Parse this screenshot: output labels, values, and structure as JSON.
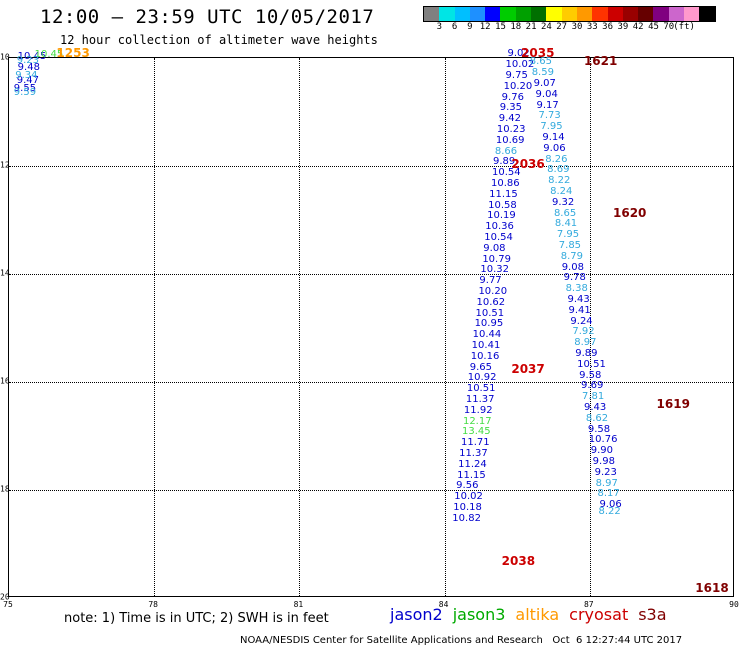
{
  "header": {
    "title": "12:00 — 23:59 UTC 10/05/2017",
    "subtitle": "12 hour collection of altimeter wave heights"
  },
  "legend": {
    "colors": [
      "#808080",
      "#00e5e5",
      "#00bfff",
      "#1e90ff",
      "#0000ff",
      "#00cc00",
      "#00a000",
      "#007000",
      "#ffff00",
      "#ffcc00",
      "#ff9900",
      "#ff3300",
      "#cc0000",
      "#990000",
      "#660000",
      "#800080",
      "#cc66cc",
      "#ff99cc",
      "#000000"
    ],
    "labels": [
      "3",
      "6",
      "9",
      "12",
      "15",
      "18",
      "21",
      "24",
      "27",
      "30",
      "33",
      "36",
      "39",
      "42",
      "45",
      "70",
      "(ft)"
    ]
  },
  "axes": {
    "x_ticks": [
      "75",
      "78",
      "81",
      "84",
      "87",
      "90"
    ],
    "y_ticks": [
      "10",
      "12",
      "14",
      "16",
      "18",
      "20"
    ],
    "x_range": [
      75,
      90
    ],
    "y_range": [
      10,
      20
    ],
    "y_axis_inverted": true
  },
  "satellites": {
    "jason2": "#0000cc",
    "jason3": "#00aa00",
    "altika": "#ff9900",
    "cryosat": "#cc0000",
    "s3a": "#800000",
    "light": "#33aadd",
    "green_light": "#44dd44"
  },
  "pass_labels": [
    {
      "text": "1253",
      "lon": 76.0,
      "lat": 9.95,
      "color": "#ff9900"
    },
    {
      "text": "2035",
      "lon": 85.6,
      "lat": 9.95,
      "color": "#cc0000"
    },
    {
      "text": "1621",
      "lon": 86.9,
      "lat": 10.1,
      "color": "#800000"
    },
    {
      "text": "2036",
      "lon": 85.4,
      "lat": 12.0,
      "color": "#cc0000"
    },
    {
      "text": "1620",
      "lon": 87.5,
      "lat": 12.9,
      "color": "#800000"
    },
    {
      "text": "2037",
      "lon": 85.4,
      "lat": 15.8,
      "color": "#cc0000"
    },
    {
      "text": "1619",
      "lon": 88.4,
      "lat": 16.45,
      "color": "#800000"
    },
    {
      "text": "2038",
      "lon": 85.2,
      "lat": 19.35,
      "color": "#cc0000"
    },
    {
      "text": "1618",
      "lon": 89.2,
      "lat": 19.85,
      "color": "#800000"
    }
  ],
  "observations": {
    "upperleft": [
      {
        "v": "10.45",
        "lon": 75.2,
        "lat": 10.0,
        "c": "#0000cc"
      },
      {
        "v": "10.45",
        "lon": 75.55,
        "lat": 9.97,
        "c": "#44dd44"
      },
      {
        "v": "9.48",
        "lon": 75.2,
        "lat": 10.2,
        "c": "#0000cc"
      },
      {
        "v": "9.23",
        "lon": 75.18,
        "lat": 10.07,
        "c": "#33aadd"
      },
      {
        "v": "9.47",
        "lon": 75.18,
        "lat": 10.45,
        "c": "#0000cc"
      },
      {
        "v": "9.34",
        "lon": 75.15,
        "lat": 10.35,
        "c": "#33aadd"
      },
      {
        "v": "9.55",
        "lon": 75.12,
        "lat": 10.6,
        "c": "#0000cc"
      },
      {
        "v": "9.59",
        "lon": 75.12,
        "lat": 10.66,
        "c": "#33aadd"
      }
    ],
    "jason2": [
      {
        "v": "9.02",
        "lon": 85.32,
        "lat": 9.95
      },
      {
        "v": "10.02",
        "lon": 85.28,
        "lat": 10.15
      },
      {
        "v": "9.75",
        "lon": 85.28,
        "lat": 10.35
      },
      {
        "v": "10.20",
        "lon": 85.24,
        "lat": 10.55
      },
      {
        "v": "9.76",
        "lon": 85.2,
        "lat": 10.75
      },
      {
        "v": "9.35",
        "lon": 85.16,
        "lat": 10.95
      },
      {
        "v": "9.42",
        "lon": 85.14,
        "lat": 11.15
      },
      {
        "v": "10.23",
        "lon": 85.1,
        "lat": 11.35
      },
      {
        "v": "10.69",
        "lon": 85.08,
        "lat": 11.55
      },
      {
        "v": "8.66",
        "lon": 85.06,
        "lat": 11.75,
        "c": "#33aadd"
      },
      {
        "v": "9.89",
        "lon": 85.02,
        "lat": 11.95
      },
      {
        "v": "10.54",
        "lon": 85.0,
        "lat": 12.15
      },
      {
        "v": "10.86",
        "lon": 84.98,
        "lat": 12.35
      },
      {
        "v": "11.15",
        "lon": 84.94,
        "lat": 12.55
      },
      {
        "v": "10.58",
        "lon": 84.92,
        "lat": 12.75
      },
      {
        "v": "10.19",
        "lon": 84.9,
        "lat": 12.95
      },
      {
        "v": "10.36",
        "lon": 84.86,
        "lat": 13.15
      },
      {
        "v": "10.54",
        "lon": 84.84,
        "lat": 13.35
      },
      {
        "v": "9.08",
        "lon": 84.82,
        "lat": 13.55
      },
      {
        "v": "10.79",
        "lon": 84.8,
        "lat": 13.75
      },
      {
        "v": "10.32",
        "lon": 84.76,
        "lat": 13.95
      },
      {
        "v": "9.77",
        "lon": 84.74,
        "lat": 14.15
      },
      {
        "v": "10.20",
        "lon": 84.72,
        "lat": 14.35
      },
      {
        "v": "10.62",
        "lon": 84.68,
        "lat": 14.55
      },
      {
        "v": "10.51",
        "lon": 84.66,
        "lat": 14.75
      },
      {
        "v": "10.95",
        "lon": 84.64,
        "lat": 14.95
      },
      {
        "v": "10.44",
        "lon": 84.6,
        "lat": 15.15
      },
      {
        "v": "10.41",
        "lon": 84.58,
        "lat": 15.35
      },
      {
        "v": "10.16",
        "lon": 84.56,
        "lat": 15.55
      },
      {
        "v": "9.65",
        "lon": 84.54,
        "lat": 15.75
      },
      {
        "v": "10.92",
        "lon": 84.5,
        "lat": 15.95
      },
      {
        "v": "10.51",
        "lon": 84.48,
        "lat": 16.15
      },
      {
        "v": "11.37",
        "lon": 84.46,
        "lat": 16.35
      },
      {
        "v": "11.92",
        "lon": 84.42,
        "lat": 16.55
      },
      {
        "v": "12.17",
        "lon": 84.4,
        "lat": 16.75,
        "c": "#44dd44"
      },
      {
        "v": "13.45",
        "lon": 84.38,
        "lat": 16.95,
        "c": "#44dd44"
      },
      {
        "v": "11.71",
        "lon": 84.36,
        "lat": 17.15
      },
      {
        "v": "11.37",
        "lon": 84.32,
        "lat": 17.35
      },
      {
        "v": "11.24",
        "lon": 84.3,
        "lat": 17.55
      },
      {
        "v": "11.15",
        "lon": 84.28,
        "lat": 17.75
      },
      {
        "v": "9.56",
        "lon": 84.26,
        "lat": 17.95
      },
      {
        "v": "10.02",
        "lon": 84.22,
        "lat": 18.15
      },
      {
        "v": "10.18",
        "lon": 84.2,
        "lat": 18.35
      },
      {
        "v": "10.82",
        "lon": 84.18,
        "lat": 18.55
      }
    ],
    "s3a": [
      {
        "v": "8.65",
        "lon": 85.78,
        "lat": 10.1,
        "c": "#33aadd"
      },
      {
        "v": "8.59",
        "lon": 85.82,
        "lat": 10.3,
        "c": "#33aadd"
      },
      {
        "v": "9.07",
        "lon": 85.86,
        "lat": 10.5
      },
      {
        "v": "9.04",
        "lon": 85.9,
        "lat": 10.7
      },
      {
        "v": "9.17",
        "lon": 85.92,
        "lat": 10.9
      },
      {
        "v": "7.73",
        "lon": 85.96,
        "lat": 11.1,
        "c": "#33aadd"
      },
      {
        "v": "7.95",
        "lon": 86.0,
        "lat": 11.3,
        "c": "#33aadd"
      },
      {
        "v": "9.14",
        "lon": 86.04,
        "lat": 11.5
      },
      {
        "v": "9.06",
        "lon": 86.06,
        "lat": 11.7
      },
      {
        "v": "8.26",
        "lon": 86.1,
        "lat": 11.9,
        "c": "#33aadd"
      },
      {
        "v": "8.69",
        "lon": 86.14,
        "lat": 12.1,
        "c": "#33aadd"
      },
      {
        "v": "8.22",
        "lon": 86.16,
        "lat": 12.3,
        "c": "#33aadd"
      },
      {
        "v": "8.24",
        "lon": 86.2,
        "lat": 12.5,
        "c": "#33aadd"
      },
      {
        "v": "9.32",
        "lon": 86.24,
        "lat": 12.7
      },
      {
        "v": "8.65",
        "lon": 86.28,
        "lat": 12.9,
        "c": "#33aadd"
      },
      {
        "v": "8.41",
        "lon": 86.3,
        "lat": 13.1,
        "c": "#33aadd"
      },
      {
        "v": "7.95",
        "lon": 86.34,
        "lat": 13.3,
        "c": "#33aadd"
      },
      {
        "v": "7.85",
        "lon": 86.38,
        "lat": 13.5,
        "c": "#33aadd"
      },
      {
        "v": "8.79",
        "lon": 86.42,
        "lat": 13.7,
        "c": "#33aadd"
      },
      {
        "v": "9.08",
        "lon": 86.44,
        "lat": 13.9
      },
      {
        "v": "9.78",
        "lon": 86.48,
        "lat": 14.1
      },
      {
        "v": "8.38",
        "lon": 86.52,
        "lat": 14.3,
        "c": "#33aadd"
      },
      {
        "v": "9.43",
        "lon": 86.56,
        "lat": 14.5
      },
      {
        "v": "9.41",
        "lon": 86.58,
        "lat": 14.7
      },
      {
        "v": "9.24",
        "lon": 86.62,
        "lat": 14.9
      },
      {
        "v": "7.92",
        "lon": 86.66,
        "lat": 15.1,
        "c": "#33aadd"
      },
      {
        "v": "8.97",
        "lon": 86.7,
        "lat": 15.3,
        "c": "#33aadd"
      },
      {
        "v": "9.89",
        "lon": 86.72,
        "lat": 15.5
      },
      {
        "v": "10.51",
        "lon": 86.76,
        "lat": 15.7
      },
      {
        "v": "9.58",
        "lon": 86.8,
        "lat": 15.9
      },
      {
        "v": "9.69",
        "lon": 86.84,
        "lat": 16.1
      },
      {
        "v": "7.81",
        "lon": 86.86,
        "lat": 16.3,
        "c": "#33aadd"
      },
      {
        "v": "9.43",
        "lon": 86.9,
        "lat": 16.5
      },
      {
        "v": "8.62",
        "lon": 86.94,
        "lat": 16.7,
        "c": "#33aadd"
      },
      {
        "v": "9.58",
        "lon": 86.98,
        "lat": 16.9
      },
      {
        "v": "10.76",
        "lon": 87.0,
        "lat": 17.1
      },
      {
        "v": "9.90",
        "lon": 87.04,
        "lat": 17.3
      },
      {
        "v": "9.98",
        "lon": 87.08,
        "lat": 17.5
      },
      {
        "v": "9.23",
        "lon": 87.12,
        "lat": 17.7
      },
      {
        "v": "8.97",
        "lon": 87.14,
        "lat": 17.9,
        "c": "#33aadd"
      },
      {
        "v": "8.17",
        "lon": 87.18,
        "lat": 18.1,
        "c": "#33aadd"
      },
      {
        "v": "9.06",
        "lon": 87.22,
        "lat": 18.3
      },
      {
        "v": "8.22",
        "lon": 87.2,
        "lat": 18.42,
        "c": "#33aadd"
      }
    ]
  },
  "footer": {
    "note": "note: 1) Time is in UTC; 2) SWH is in feet",
    "sat_labels": [
      "jason2",
      "jason3",
      "altika",
      "cryosat",
      "s3a"
    ],
    "credit": "NOAA/NESDIS Center for Satellite Applications and Research   Oct  6 12:27:44 UTC 2017"
  }
}
